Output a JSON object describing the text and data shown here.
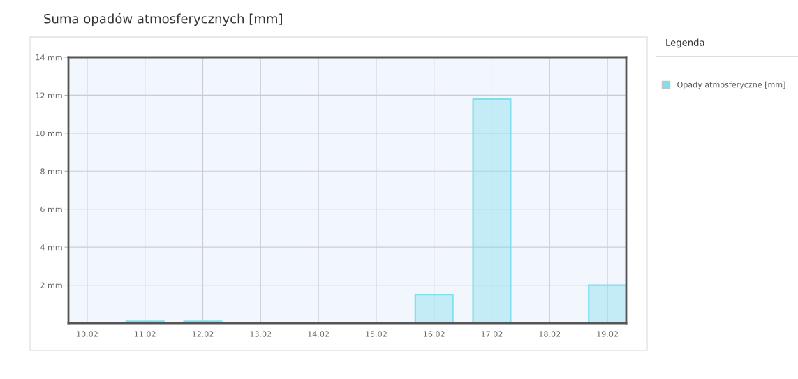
{
  "chart_data": {
    "type": "bar",
    "title": "Suma opadów atmosferycznych [mm]",
    "categories": [
      "10.02",
      "11.02",
      "12.02",
      "13.02",
      "14.02",
      "15.02",
      "16.02",
      "17.02",
      "18.02",
      "19.02"
    ],
    "series": [
      {
        "name": "Opady atmosferyczne [mm]",
        "color": "#7fdfee",
        "values": [
          null,
          0.1,
          0.1,
          null,
          null,
          null,
          1.5,
          11.8,
          null,
          2.0
        ]
      }
    ],
    "ylim": [
      0,
      14
    ],
    "yticks": [
      {
        "value": 2,
        "label": "2 mm"
      },
      {
        "value": 4,
        "label": "4 mm"
      },
      {
        "value": 6,
        "label": "6 mm"
      },
      {
        "value": 8,
        "label": "8 mm"
      },
      {
        "value": 10,
        "label": "10 mm"
      },
      {
        "value": 12,
        "label": "12 mm"
      },
      {
        "value": 14,
        "label": "14 mm"
      }
    ],
    "grid": true,
    "legend": "right",
    "legend_title": "Legenda"
  }
}
